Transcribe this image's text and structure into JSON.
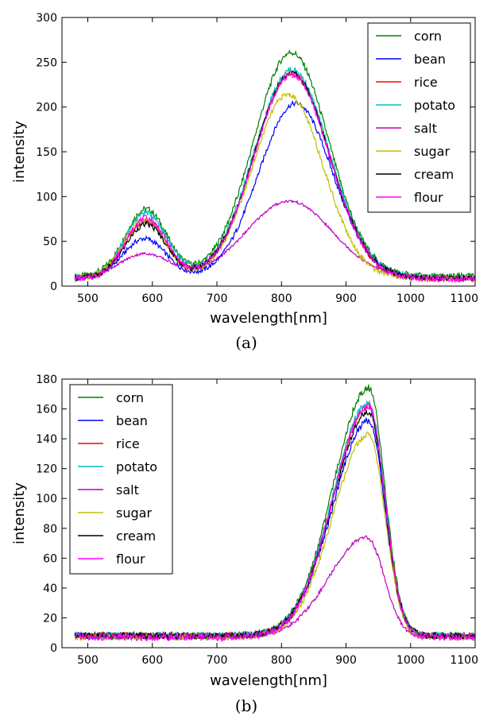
{
  "chart_data": [
    {
      "type": "line",
      "caption": "(a)",
      "xlabel": "wavelength[nm]",
      "ylabel": "intensity",
      "xlim": [
        460,
        1100
      ],
      "ylim": [
        0,
        300
      ],
      "xticks": [
        500,
        600,
        700,
        800,
        900,
        1000,
        1100
      ],
      "yticks": [
        0,
        50,
        100,
        150,
        200,
        250,
        300
      ],
      "legend_position": "top-right",
      "grid": false,
      "series": [
        {
          "name": "corn",
          "color": "#008000",
          "baseline": 11,
          "peaks": [
            {
              "center": 590,
              "width": 32,
              "height": 75
            },
            {
              "center": 815,
              "width": 58,
              "height": 250
            }
          ]
        },
        {
          "name": "bean",
          "color": "#0000ff",
          "baseline": 9,
          "peaks": [
            {
              "center": 588,
              "width": 33,
              "height": 44
            },
            {
              "center": 822,
              "width": 57,
              "height": 195
            }
          ]
        },
        {
          "name": "rice",
          "color": "#ff0000",
          "baseline": 8,
          "peaks": [
            {
              "center": 590,
              "width": 32,
              "height": 65
            },
            {
              "center": 816,
              "width": 58,
              "height": 230
            }
          ]
        },
        {
          "name": "potato",
          "color": "#00bfbf",
          "baseline": 10,
          "peaks": [
            {
              "center": 590,
              "width": 32,
              "height": 72
            },
            {
              "center": 816,
              "width": 58,
              "height": 232
            }
          ]
        },
        {
          "name": "salt",
          "color": "#bf00bf",
          "baseline": 10,
          "peaks": [
            {
              "center": 588,
              "width": 38,
              "height": 26
            },
            {
              "center": 812,
              "width": 66,
              "height": 85
            }
          ]
        },
        {
          "name": "sugar",
          "color": "#bfbf00",
          "baseline": 9,
          "peaks": [
            {
              "center": 588,
              "width": 32,
              "height": 66
            },
            {
              "center": 810,
              "width": 55,
              "height": 205
            }
          ]
        },
        {
          "name": "cream",
          "color": "#000000",
          "baseline": 9,
          "peaks": [
            {
              "center": 590,
              "width": 32,
              "height": 60
            },
            {
              "center": 816,
              "width": 58,
              "height": 229
            }
          ]
        },
        {
          "name": "flour",
          "color": "#ff00ff",
          "baseline": 8,
          "peaks": [
            {
              "center": 590,
              "width": 32,
              "height": 68
            },
            {
              "center": 816,
              "width": 58,
              "height": 228
            }
          ]
        }
      ]
    },
    {
      "type": "line",
      "caption": "(b)",
      "xlabel": "wavelength[nm]",
      "ylabel": "intensity",
      "xlim": [
        460,
        1100
      ],
      "ylim": [
        0,
        180
      ],
      "xticks": [
        500,
        600,
        700,
        800,
        900,
        1000,
        1100
      ],
      "yticks": [
        0,
        20,
        40,
        60,
        80,
        100,
        120,
        140,
        160,
        180
      ],
      "legend_position": "top-left",
      "grid": false,
      "series": [
        {
          "name": "corn",
          "color": "#008000",
          "baseline": 8,
          "peaks": [
            {
              "center": 935,
              "width_left": 55,
              "width_right": 25,
              "height": 166
            }
          ]
        },
        {
          "name": "bean",
          "color": "#0000ff",
          "baseline": 8,
          "peaks": [
            {
              "center": 935,
              "width_left": 55,
              "width_right": 25,
              "height": 144
            }
          ]
        },
        {
          "name": "rice",
          "color": "#ff0000",
          "baseline": 8,
          "peaks": [
            {
              "center": 935,
              "width_left": 55,
              "width_right": 25,
              "height": 154
            }
          ]
        },
        {
          "name": "potato",
          "color": "#00bfbf",
          "baseline": 8,
          "peaks": [
            {
              "center": 935,
              "width_left": 55,
              "width_right": 25,
              "height": 156
            }
          ]
        },
        {
          "name": "salt",
          "color": "#bf00bf",
          "baseline": 7,
          "peaks": [
            {
              "center": 932,
              "width_left": 58,
              "width_right": 27,
              "height": 67
            }
          ]
        },
        {
          "name": "sugar",
          "color": "#bfbf00",
          "baseline": 7,
          "peaks": [
            {
              "center": 935,
              "width_left": 55,
              "width_right": 25,
              "height": 136
            }
          ]
        },
        {
          "name": "cream",
          "color": "#000000",
          "baseline": 8,
          "peaks": [
            {
              "center": 935,
              "width_left": 55,
              "width_right": 25,
              "height": 150
            }
          ]
        },
        {
          "name": "flour",
          "color": "#ff00ff",
          "baseline": 7,
          "peaks": [
            {
              "center": 935,
              "width_left": 55,
              "width_right": 25,
              "height": 155
            }
          ]
        }
      ]
    }
  ]
}
